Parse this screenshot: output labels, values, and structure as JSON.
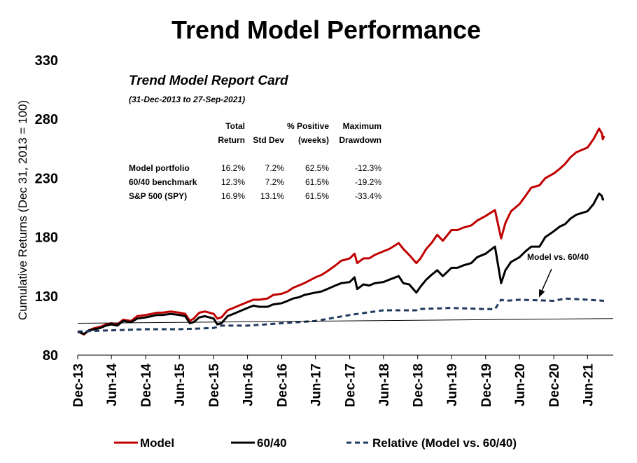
{
  "chart_data": {
    "type": "line",
    "title": "Trend Model Performance",
    "ylabel": "Cumulative Returns (Dec 31, 2013 = 100)",
    "ylim": [
      80,
      330
    ],
    "yticks": [
      80,
      130,
      180,
      230,
      280,
      330
    ],
    "xrange": [
      "2013-12-31",
      "2021-11-15"
    ],
    "xticks": [
      {
        "label": "Dec-13",
        "date": "2013-12-31"
      },
      {
        "label": "Jun-14",
        "date": "2014-06-30"
      },
      {
        "label": "Dec-14",
        "date": "2014-12-31"
      },
      {
        "label": "Jun-15",
        "date": "2015-06-30"
      },
      {
        "label": "Dec-15",
        "date": "2015-12-31"
      },
      {
        "label": "Jun-16",
        "date": "2016-06-30"
      },
      {
        "label": "Dec-16",
        "date": "2016-12-31"
      },
      {
        "label": "Jun-17",
        "date": "2017-06-30"
      },
      {
        "label": "Dec-17",
        "date": "2017-12-31"
      },
      {
        "label": "Jun-18",
        "date": "2018-06-30"
      },
      {
        "label": "Dec-18",
        "date": "2018-12-31"
      },
      {
        "label": "Jun-19",
        "date": "2019-06-30"
      },
      {
        "label": "Dec-19",
        "date": "2019-12-31"
      },
      {
        "label": "Jun-20",
        "date": "2020-06-30"
      },
      {
        "label": "Dec-20",
        "date": "2020-12-31"
      },
      {
        "label": "Jun-21",
        "date": "2021-06-30"
      }
    ],
    "legend_position": "bottom",
    "grid": false,
    "series": [
      {
        "name": "Model",
        "color": "#c00000",
        "style": "solid",
        "points": [
          [
            "2013-12-31",
            100
          ],
          [
            "2014-02-03",
            97.5
          ],
          [
            "2014-03-01",
            101
          ],
          [
            "2014-04-01",
            103
          ],
          [
            "2014-05-01",
            104
          ],
          [
            "2014-06-01",
            106
          ],
          [
            "2014-06-30",
            107
          ],
          [
            "2014-08-01",
            106
          ],
          [
            "2014-09-01",
            110
          ],
          [
            "2014-10-15",
            109
          ],
          [
            "2014-11-15",
            113
          ],
          [
            "2014-12-31",
            114
          ],
          [
            "2015-02-01",
            115
          ],
          [
            "2015-03-01",
            116
          ],
          [
            "2015-04-01",
            116
          ],
          [
            "2015-05-15",
            117
          ],
          [
            "2015-06-30",
            116
          ],
          [
            "2015-08-01",
            115
          ],
          [
            "2015-08-25",
            109
          ],
          [
            "2015-09-15",
            111
          ],
          [
            "2015-10-15",
            116
          ],
          [
            "2015-11-15",
            117
          ],
          [
            "2015-12-31",
            115
          ],
          [
            "2016-01-20",
            111
          ],
          [
            "2016-02-11",
            112
          ],
          [
            "2016-03-15",
            118
          ],
          [
            "2016-04-15",
            120
          ],
          [
            "2016-05-15",
            122
          ],
          [
            "2016-06-30",
            125
          ],
          [
            "2016-08-01",
            127
          ],
          [
            "2016-09-01",
            127
          ],
          [
            "2016-10-15",
            128
          ],
          [
            "2016-11-15",
            131
          ],
          [
            "2016-12-31",
            132
          ],
          [
            "2017-02-01",
            134
          ],
          [
            "2017-03-01",
            137
          ],
          [
            "2017-04-01",
            139
          ],
          [
            "2017-05-01",
            141
          ],
          [
            "2017-06-30",
            146
          ],
          [
            "2017-08-01",
            148
          ],
          [
            "2017-09-01",
            151
          ],
          [
            "2017-10-15",
            156
          ],
          [
            "2017-11-15",
            160
          ],
          [
            "2017-12-31",
            162
          ],
          [
            "2018-01-26",
            166
          ],
          [
            "2018-02-09",
            158
          ],
          [
            "2018-03-15",
            162
          ],
          [
            "2018-04-15",
            162
          ],
          [
            "2018-05-15",
            165
          ],
          [
            "2018-06-30",
            168
          ],
          [
            "2018-08-01",
            170
          ],
          [
            "2018-09-20",
            175
          ],
          [
            "2018-10-15",
            170
          ],
          [
            "2018-11-15",
            165
          ],
          [
            "2018-12-24",
            158
          ],
          [
            "2019-01-15",
            162
          ],
          [
            "2019-02-15",
            170
          ],
          [
            "2019-03-15",
            175
          ],
          [
            "2019-04-15",
            182
          ],
          [
            "2019-05-15",
            177
          ],
          [
            "2019-06-30",
            186
          ],
          [
            "2019-08-01",
            186
          ],
          [
            "2019-09-01",
            188
          ],
          [
            "2019-10-15",
            190
          ],
          [
            "2019-11-15",
            194
          ],
          [
            "2019-12-31",
            198
          ],
          [
            "2020-02-19",
            203
          ],
          [
            "2020-03-23",
            179
          ],
          [
            "2020-04-15",
            192
          ],
          [
            "2020-05-15",
            202
          ],
          [
            "2020-06-30",
            208
          ],
          [
            "2020-08-01",
            215
          ],
          [
            "2020-09-01",
            222
          ],
          [
            "2020-10-15",
            224
          ],
          [
            "2020-11-15",
            230
          ],
          [
            "2020-12-31",
            234
          ],
          [
            "2021-02-01",
            238
          ],
          [
            "2021-03-01",
            242
          ],
          [
            "2021-04-01",
            248
          ],
          [
            "2021-05-01",
            252
          ],
          [
            "2021-06-30",
            256
          ],
          [
            "2021-08-01",
            263
          ],
          [
            "2021-08-31",
            272
          ],
          [
            "2021-09-15",
            268
          ],
          [
            "2021-09-20",
            263
          ],
          [
            "2021-09-27",
            266
          ]
        ]
      },
      {
        "name": "60/40",
        "color": "#000000",
        "style": "solid",
        "points": [
          [
            "2013-12-31",
            100
          ],
          [
            "2014-02-03",
            98
          ],
          [
            "2014-03-01",
            101
          ],
          [
            "2014-04-01",
            102
          ],
          [
            "2014-05-01",
            103
          ],
          [
            "2014-06-01",
            105
          ],
          [
            "2014-06-30",
            106
          ],
          [
            "2014-08-01",
            105
          ],
          [
            "2014-09-01",
            109
          ],
          [
            "2014-10-15",
            108
          ],
          [
            "2014-11-15",
            111
          ],
          [
            "2014-12-31",
            112
          ],
          [
            "2015-02-01",
            113
          ],
          [
            "2015-03-01",
            114
          ],
          [
            "2015-04-01",
            114
          ],
          [
            "2015-05-15",
            115
          ],
          [
            "2015-06-30",
            114
          ],
          [
            "2015-08-01",
            113
          ],
          [
            "2015-08-25",
            107
          ],
          [
            "2015-09-15",
            108
          ],
          [
            "2015-10-15",
            112
          ],
          [
            "2015-11-15",
            113
          ],
          [
            "2015-12-31",
            111
          ],
          [
            "2016-01-20",
            106
          ],
          [
            "2016-02-11",
            107
          ],
          [
            "2016-03-15",
            113
          ],
          [
            "2016-04-15",
            115
          ],
          [
            "2016-05-15",
            117
          ],
          [
            "2016-06-30",
            120
          ],
          [
            "2016-08-01",
            122
          ],
          [
            "2016-09-01",
            121
          ],
          [
            "2016-10-15",
            121
          ],
          [
            "2016-11-15",
            123
          ],
          [
            "2016-12-31",
            124
          ],
          [
            "2017-02-01",
            126
          ],
          [
            "2017-03-01",
            128
          ],
          [
            "2017-04-01",
            129
          ],
          [
            "2017-05-01",
            131
          ],
          [
            "2017-06-30",
            133
          ],
          [
            "2017-08-01",
            134
          ],
          [
            "2017-09-01",
            136
          ],
          [
            "2017-10-15",
            139
          ],
          [
            "2017-11-15",
            141
          ],
          [
            "2017-12-31",
            142
          ],
          [
            "2018-01-26",
            146
          ],
          [
            "2018-02-09",
            136
          ],
          [
            "2018-03-15",
            140
          ],
          [
            "2018-04-15",
            139
          ],
          [
            "2018-05-15",
            141
          ],
          [
            "2018-06-30",
            142
          ],
          [
            "2018-08-01",
            144
          ],
          [
            "2018-09-20",
            147
          ],
          [
            "2018-10-15",
            141
          ],
          [
            "2018-11-15",
            140
          ],
          [
            "2018-12-24",
            133
          ],
          [
            "2019-01-15",
            138
          ],
          [
            "2019-02-15",
            144
          ],
          [
            "2019-03-15",
            148
          ],
          [
            "2019-04-15",
            152
          ],
          [
            "2019-05-15",
            147
          ],
          [
            "2019-06-30",
            154
          ],
          [
            "2019-08-01",
            154
          ],
          [
            "2019-09-01",
            156
          ],
          [
            "2019-10-15",
            158
          ],
          [
            "2019-11-15",
            163
          ],
          [
            "2019-12-31",
            166
          ],
          [
            "2020-02-19",
            172
          ],
          [
            "2020-03-23",
            141
          ],
          [
            "2020-04-15",
            152
          ],
          [
            "2020-05-15",
            159
          ],
          [
            "2020-06-30",
            163
          ],
          [
            "2020-08-01",
            168
          ],
          [
            "2020-09-01",
            172
          ],
          [
            "2020-10-15",
            172
          ],
          [
            "2020-11-15",
            180
          ],
          [
            "2020-12-31",
            185
          ],
          [
            "2021-02-01",
            189
          ],
          [
            "2021-03-01",
            191
          ],
          [
            "2021-04-01",
            196
          ],
          [
            "2021-05-01",
            199
          ],
          [
            "2021-06-30",
            202
          ],
          [
            "2021-08-01",
            208
          ],
          [
            "2021-08-31",
            217
          ],
          [
            "2021-09-15",
            215
          ],
          [
            "2021-09-20",
            212
          ],
          [
            "2021-09-27",
            212
          ]
        ]
      },
      {
        "name": "Relative (Model vs. 60/40)",
        "color": "#1f3a5f",
        "style": "dashed",
        "points": [
          [
            "2013-12-31",
            100
          ],
          [
            "2014-06-30",
            101
          ],
          [
            "2014-12-31",
            102
          ],
          [
            "2015-06-30",
            102
          ],
          [
            "2015-12-31",
            103
          ],
          [
            "2016-02-11",
            105
          ],
          [
            "2016-06-30",
            105
          ],
          [
            "2016-12-31",
            107
          ],
          [
            "2017-06-30",
            109
          ],
          [
            "2017-12-31",
            114
          ],
          [
            "2018-06-30",
            118
          ],
          [
            "2018-12-24",
            118
          ],
          [
            "2018-12-31",
            119
          ],
          [
            "2019-06-30",
            120
          ],
          [
            "2019-12-31",
            119
          ],
          [
            "2020-02-19",
            119
          ],
          [
            "2020-03-23",
            127
          ],
          [
            "2020-04-15",
            126
          ],
          [
            "2020-06-30",
            127
          ],
          [
            "2020-12-31",
            126
          ],
          [
            "2021-03-01",
            128
          ],
          [
            "2021-06-30",
            127
          ],
          [
            "2021-09-27",
            126
          ]
        ]
      },
      {
        "name": "",
        "color": "#000000",
        "style": "solid",
        "thin": true,
        "points": [
          [
            "2013-12-31",
            107
          ],
          [
            "2021-11-15",
            111
          ]
        ]
      }
    ],
    "report_card": {
      "title": "Trend Model Report Card",
      "subtitle": "(31-Dec-2013 to 27-Sep-2021)",
      "header_row1": [
        "",
        "Total",
        "",
        "% Positive",
        "Maximum"
      ],
      "header_row2": [
        "",
        "Return",
        "Std Dev",
        "(weeks)",
        "Drawdown"
      ],
      "rows": [
        [
          "Model portfolio",
          "16.2%",
          "7.2%",
          "62.5%",
          "-12.3%"
        ],
        [
          "60/40 benchmark",
          "12.3%",
          "7.2%",
          "61.5%",
          "-19.2%"
        ],
        [
          "S&P 500 (SPY)",
          "16.9%",
          "13.1%",
          "61.5%",
          "-33.4%"
        ]
      ]
    },
    "annotation": {
      "text": "Model vs. 60/40",
      "arrow_date": "2020-10-15",
      "arrow_value": 130
    },
    "legend": [
      {
        "label": "Model",
        "color": "#c00000",
        "style": "solid"
      },
      {
        "label": "60/40",
        "color": "#000000",
        "style": "solid"
      },
      {
        "label": "Relative (Model vs. 60/40)",
        "color": "#1f3a5f",
        "style": "dashed"
      }
    ]
  }
}
